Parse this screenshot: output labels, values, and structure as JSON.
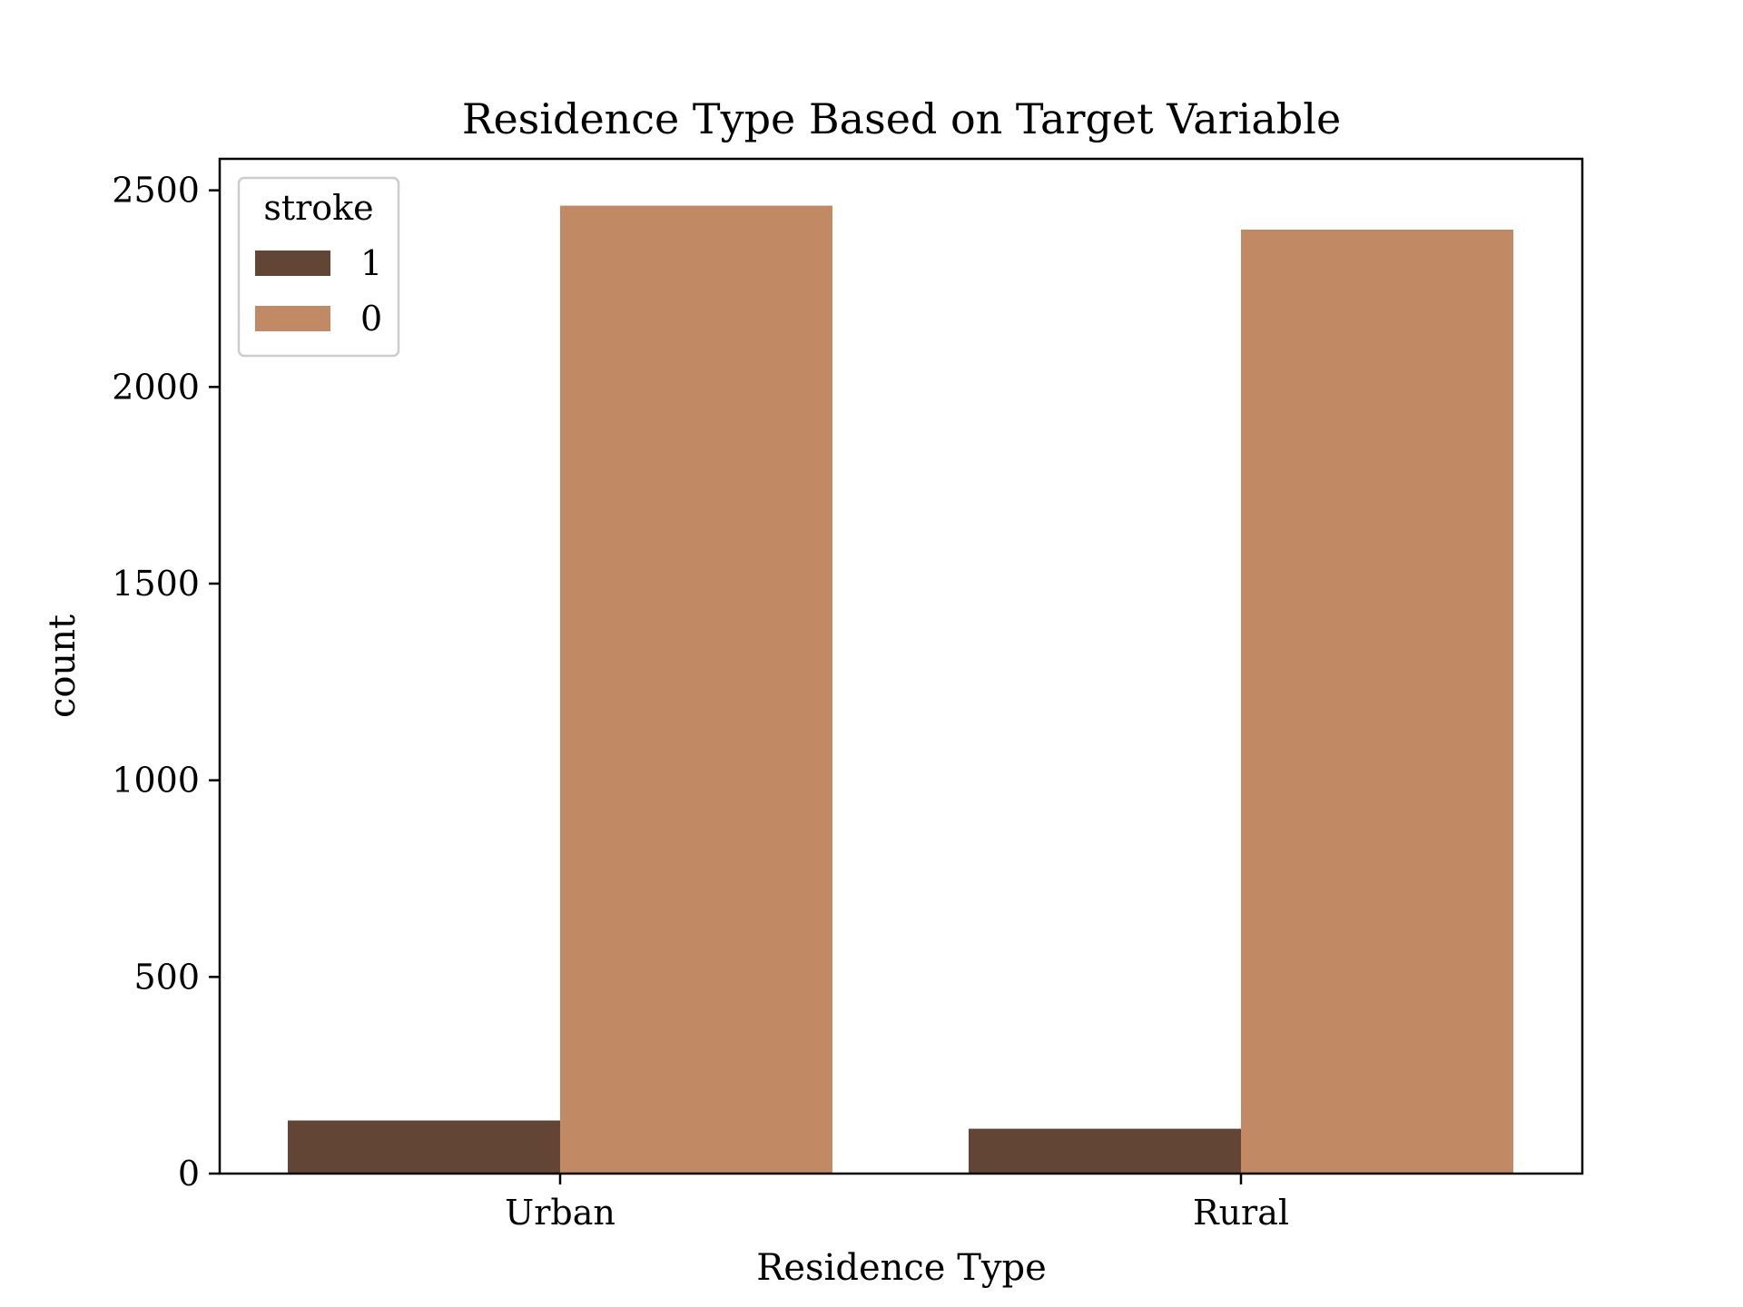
{
  "chart_data": {
    "type": "bar",
    "title": "Residence Type Based on Target Variable",
    "xlabel": "Residence Type",
    "ylabel": "count",
    "categories": [
      "Urban",
      "Rural"
    ],
    "ylim": [
      0,
      2580
    ],
    "yticks": [
      0,
      500,
      1000,
      1500,
      2000,
      2500
    ],
    "grid": false,
    "legend": {
      "title": "stroke",
      "placement": "top-left"
    },
    "series": [
      {
        "name": "1",
        "color": "#624535",
        "values": [
          135,
          114
        ]
      },
      {
        "name": "0",
        "color": "#c18964",
        "values": [
          2461,
          2400
        ]
      }
    ]
  }
}
